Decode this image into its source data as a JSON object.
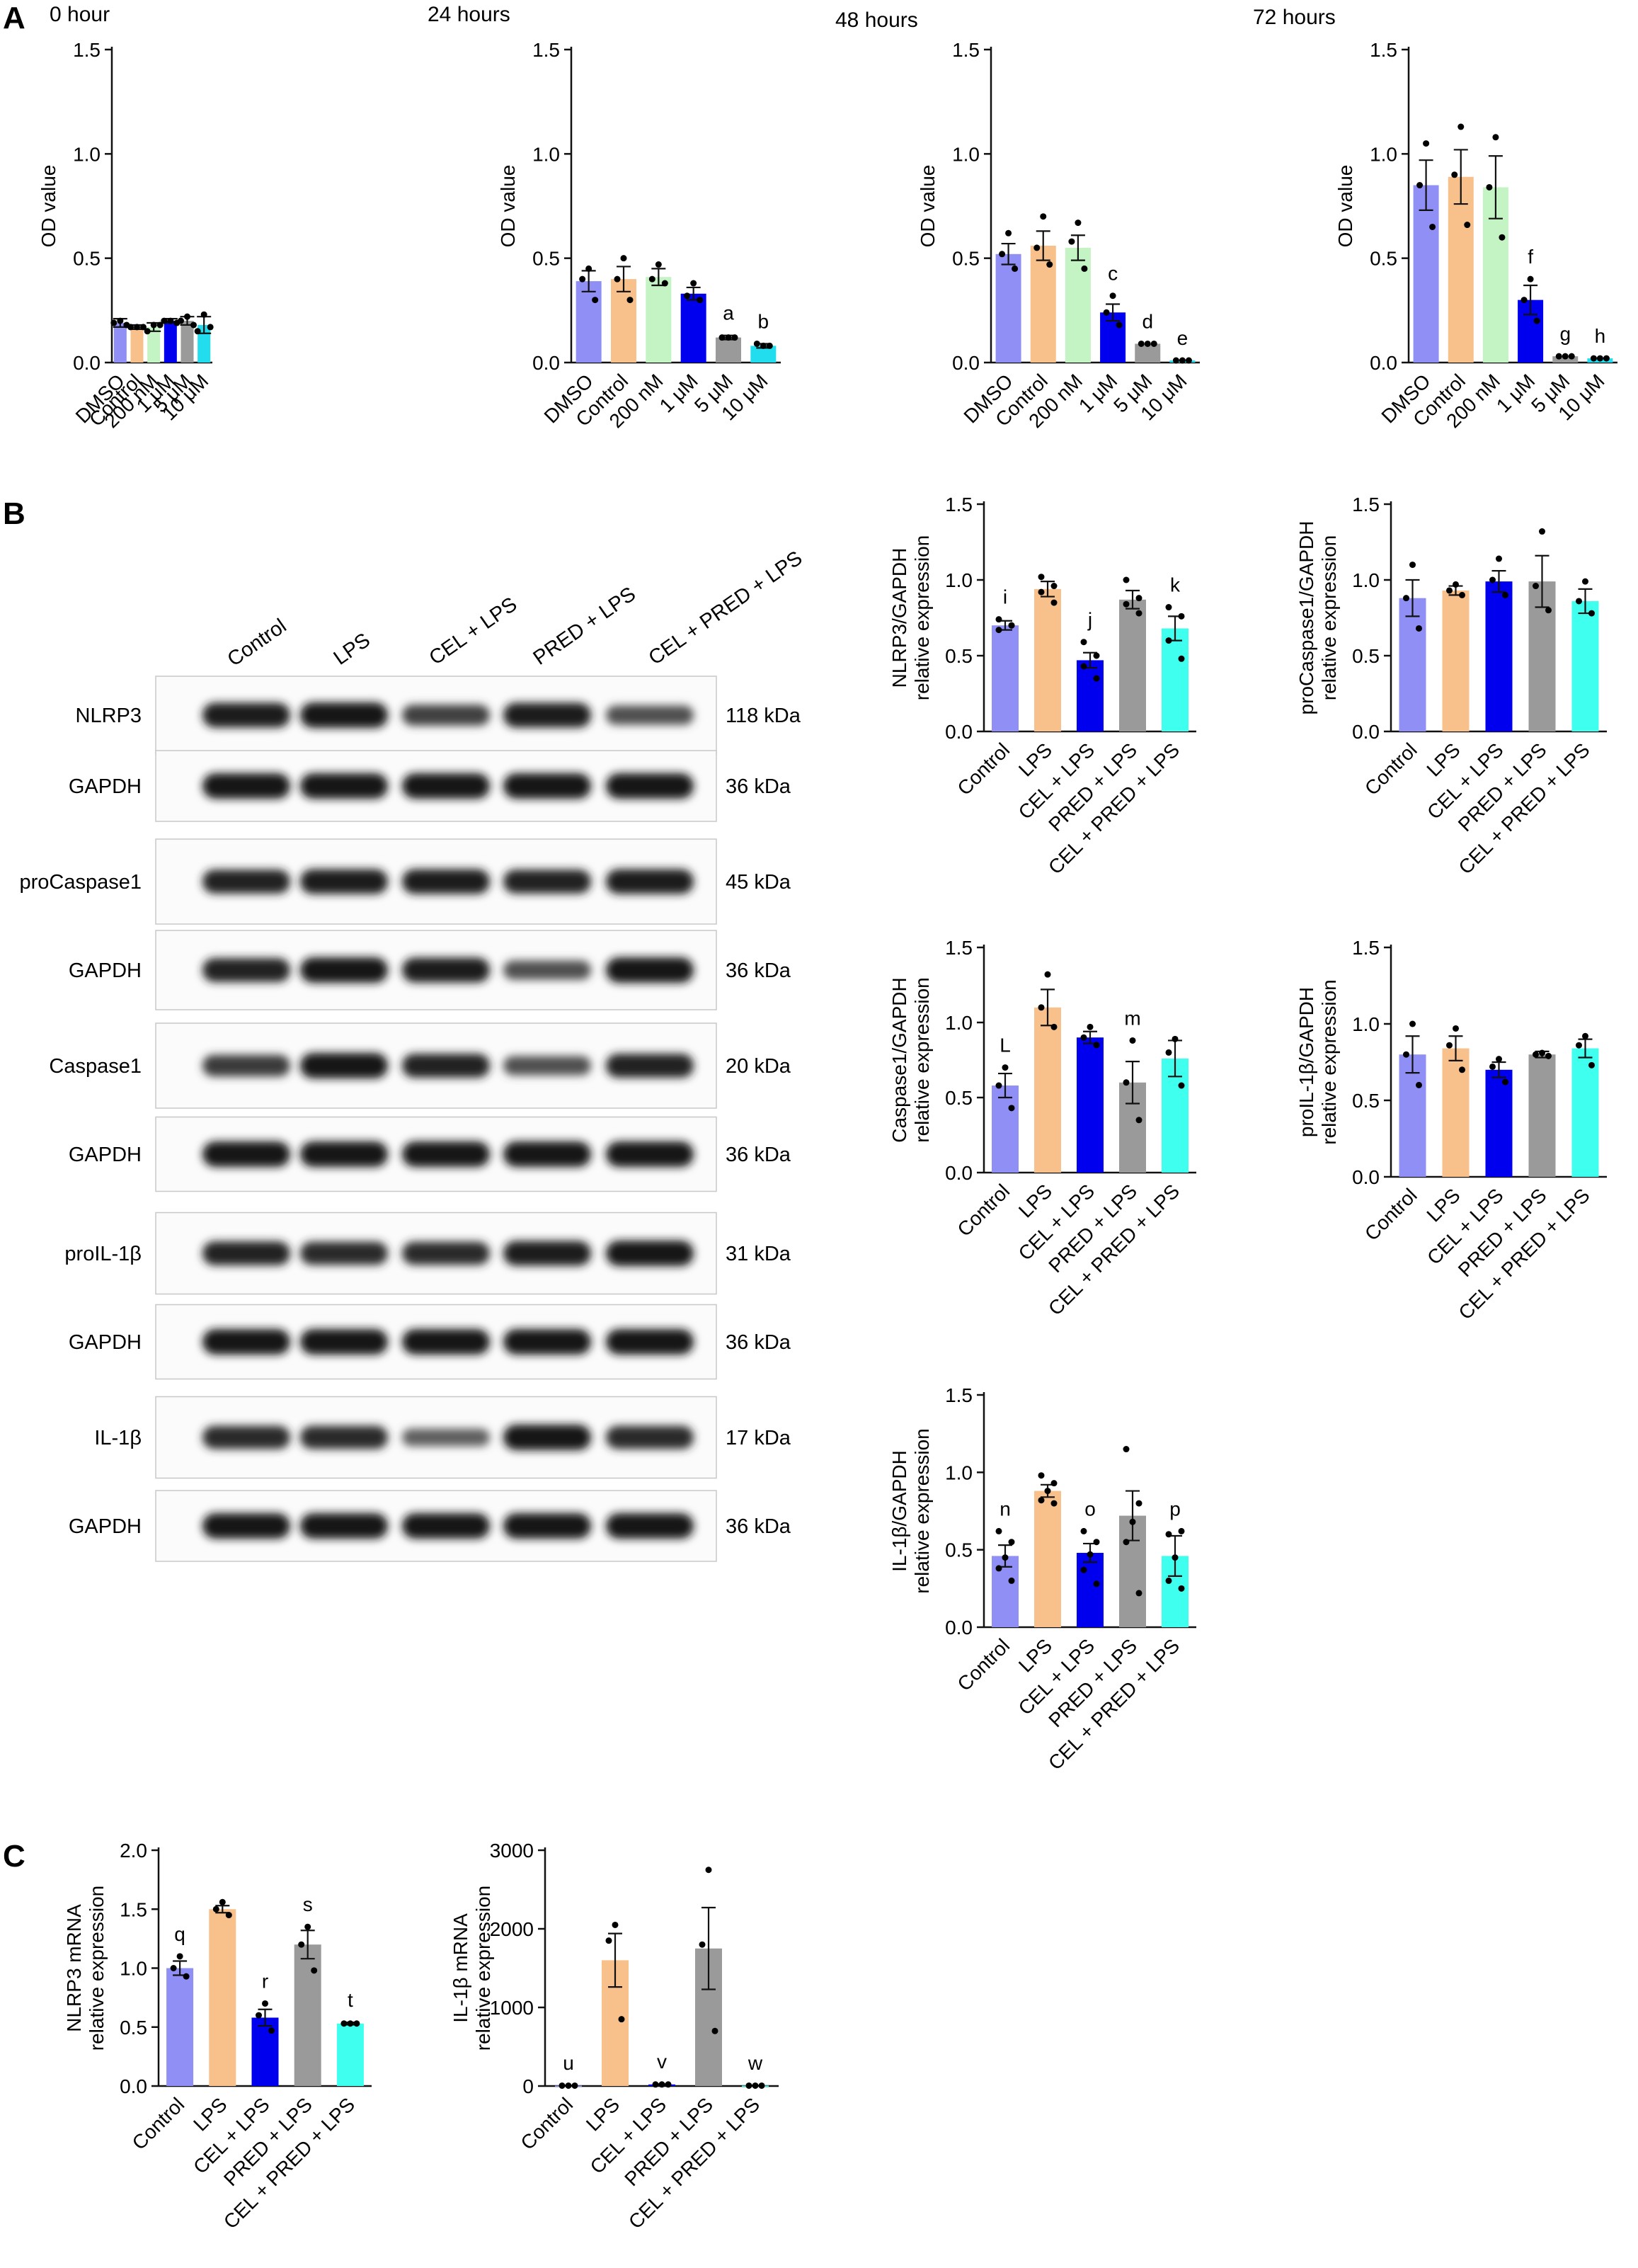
{
  "panel_labels": [
    "A",
    "B",
    "C"
  ],
  "colors": {
    "blue_light": "#8f8ff6",
    "orange": "#f8c08a",
    "mint": "#c4f3c4",
    "blue": "#0000ee",
    "grey": "#9a9a9a",
    "cyan": "#22ddee",
    "mint_bright": "#3fffee"
  },
  "chart_data": [
    {
      "id": "A-0h",
      "type": "bar",
      "title": "0 hour",
      "ylabel": "OD value",
      "xlabel": "",
      "ylim": [
        0,
        1.5
      ],
      "yticks": [
        "0.0",
        "0.5",
        "1.0",
        "1.5"
      ],
      "categories": [
        "DMSO",
        "Control",
        "200 nM",
        "1 μM",
        "5 μM",
        "10 μM"
      ],
      "values": [
        0.19,
        0.17,
        0.17,
        0.2,
        0.2,
        0.18
      ],
      "errors": [
        0.02,
        0.01,
        0.02,
        0.01,
        0.02,
        0.04
      ],
      "points": [
        [
          0.2,
          0.19,
          0.18
        ],
        [
          0.17,
          0.17,
          0.17
        ],
        [
          0.18,
          0.15,
          0.18
        ],
        [
          0.2,
          0.2,
          0.19
        ],
        [
          0.22,
          0.2,
          0.18
        ],
        [
          0.23,
          0.15,
          0.17
        ]
      ],
      "colors": [
        "#8f8ff6",
        "#f8c08a",
        "#c4f3c4",
        "#0000ee",
        "#9a9a9a",
        "#22ddee"
      ],
      "labels": [
        "",
        "",
        "",
        "",
        "",
        ""
      ]
    },
    {
      "id": "A-24h",
      "type": "bar",
      "title": "24 hours",
      "ylabel": "OD value",
      "xlabel": "",
      "ylim": [
        0,
        1.5
      ],
      "yticks": [
        "0.0",
        "0.5",
        "1.0",
        "1.5"
      ],
      "categories": [
        "DMSO",
        "Control",
        "200 nM",
        "1 μM",
        "5 μM",
        "10 μM"
      ],
      "values": [
        0.39,
        0.4,
        0.41,
        0.33,
        0.12,
        0.08
      ],
      "errors": [
        0.05,
        0.06,
        0.04,
        0.03,
        0.01,
        0.01
      ],
      "points": [
        [
          0.45,
          0.4,
          0.3
        ],
        [
          0.5,
          0.4,
          0.3
        ],
        [
          0.47,
          0.4,
          0.38
        ],
        [
          0.38,
          0.32,
          0.3
        ],
        [
          0.12,
          0.12,
          0.12
        ],
        [
          0.08,
          0.09,
          0.08
        ]
      ],
      "colors": [
        "#8f8ff6",
        "#f8c08a",
        "#c4f3c4",
        "#0000ee",
        "#9a9a9a",
        "#22ddee"
      ],
      "labels": [
        "",
        "",
        "",
        "",
        "a",
        "b"
      ]
    },
    {
      "id": "A-48h",
      "type": "bar",
      "title": "48 hours",
      "ylabel": "OD value",
      "xlabel": "",
      "ylim": [
        0,
        1.5
      ],
      "yticks": [
        "0.0",
        "0.5",
        "1.0",
        "1.5"
      ],
      "categories": [
        "DMSO",
        "Control",
        "200 nM",
        "1 μM",
        "5 μM",
        "10 μM"
      ],
      "values": [
        0.52,
        0.56,
        0.55,
        0.24,
        0.09,
        0.01
      ],
      "errors": [
        0.05,
        0.07,
        0.06,
        0.04,
        0.0,
        0.0
      ],
      "points": [
        [
          0.62,
          0.52,
          0.45
        ],
        [
          0.7,
          0.55,
          0.47
        ],
        [
          0.67,
          0.58,
          0.45
        ],
        [
          0.32,
          0.24,
          0.18
        ],
        [
          0.09,
          0.09,
          0.09
        ],
        [
          0.01,
          0.01,
          0.01
        ]
      ],
      "colors": [
        "#8f8ff6",
        "#f8c08a",
        "#c4f3c4",
        "#0000ee",
        "#9a9a9a",
        "#22ddee"
      ],
      "labels": [
        "",
        "",
        "",
        "c",
        "d",
        "e"
      ]
    },
    {
      "id": "A-72h",
      "type": "bar",
      "title": "72 hours",
      "ylabel": "OD value",
      "xlabel": "",
      "ylim": [
        0,
        1.5
      ],
      "yticks": [
        "0.0",
        "0.5",
        "1.0",
        "1.5"
      ],
      "categories": [
        "DMSO",
        "Control",
        "200 nM",
        "1 μM",
        "5 μM",
        "10 μM"
      ],
      "values": [
        0.85,
        0.89,
        0.84,
        0.3,
        0.03,
        0.02
      ],
      "errors": [
        0.12,
        0.13,
        0.15,
        0.07,
        0.0,
        0.0
      ],
      "points": [
        [
          1.05,
          0.85,
          0.65
        ],
        [
          1.13,
          0.9,
          0.66
        ],
        [
          1.08,
          0.84,
          0.6
        ],
        [
          0.4,
          0.3,
          0.2
        ],
        [
          0.03,
          0.03,
          0.03
        ],
        [
          0.02,
          0.02,
          0.02
        ]
      ],
      "colors": [
        "#8f8ff6",
        "#f8c08a",
        "#c4f3c4",
        "#0000ee",
        "#9a9a9a",
        "#22ddee"
      ],
      "labels": [
        "",
        "",
        "",
        "f",
        "g",
        "h"
      ]
    },
    {
      "id": "B-NLRP3",
      "type": "bar",
      "title": "",
      "ylabel": "NLRP3/GAPDH relative expression",
      "xlabel": "",
      "ylim": [
        0,
        1.5
      ],
      "yticks": [
        "0.0",
        "0.5",
        "1.0",
        "1.5"
      ],
      "categories": [
        "Control",
        "LPS",
        "CEL + LPS",
        "PRED + LPS",
        "CEL + PRED + LPS"
      ],
      "values": [
        0.7,
        0.94,
        0.47,
        0.87,
        0.68
      ],
      "errors": [
        0.03,
        0.05,
        0.05,
        0.06,
        0.08
      ],
      "points": [
        [
          0.74,
          0.7,
          0.67,
          0.7
        ],
        [
          1.02,
          0.96,
          0.92,
          0.85
        ],
        [
          0.59,
          0.5,
          0.43,
          0.35
        ],
        [
          1.0,
          0.88,
          0.84,
          0.78
        ],
        [
          0.82,
          0.76,
          0.6,
          0.48
        ]
      ],
      "colors": [
        "#8f8ff6",
        "#f8c08a",
        "#0000ee",
        "#9a9a9a",
        "#3fffee"
      ],
      "labels": [
        "i",
        "",
        "j",
        "",
        "k"
      ]
    },
    {
      "id": "B-proCaspase1",
      "type": "bar",
      "title": "",
      "ylabel": "proCaspase1/GAPDH relative expression",
      "xlabel": "",
      "ylim": [
        0,
        1.5
      ],
      "yticks": [
        "0.0",
        "0.5",
        "1.0",
        "1.5"
      ],
      "categories": [
        "Control",
        "LPS",
        "CEL + LPS",
        "PRED + LPS",
        "CEL + PRED + LPS"
      ],
      "values": [
        0.88,
        0.93,
        0.99,
        0.99,
        0.86
      ],
      "errors": [
        0.12,
        0.03,
        0.07,
        0.17,
        0.08
      ],
      "points": [
        [
          1.1,
          0.88,
          0.68
        ],
        [
          0.97,
          0.93,
          0.9
        ],
        [
          1.14,
          1.0,
          0.9
        ],
        [
          1.32,
          0.96,
          0.8
        ],
        [
          0.99,
          0.86,
          0.78
        ]
      ],
      "colors": [
        "#8f8ff6",
        "#f8c08a",
        "#0000ee",
        "#9a9a9a",
        "#3fffee"
      ],
      "labels": [
        "",
        "",
        "",
        "",
        ""
      ]
    },
    {
      "id": "B-Caspase1",
      "type": "bar",
      "title": "",
      "ylabel": "Caspase1/GAPDH relative expression",
      "xlabel": "",
      "ylim": [
        0,
        1.5
      ],
      "yticks": [
        "0.0",
        "0.5",
        "1.0",
        "1.5"
      ],
      "categories": [
        "Control",
        "LPS",
        "CEL + LPS",
        "PRED + LPS",
        "CEL + PRED + LPS"
      ],
      "values": [
        0.58,
        1.1,
        0.9,
        0.6,
        0.76
      ],
      "errors": [
        0.08,
        0.12,
        0.04,
        0.14,
        0.12
      ],
      "points": [
        [
          0.7,
          0.58,
          0.43
        ],
        [
          1.32,
          1.1,
          0.97
        ],
        [
          0.97,
          0.9,
          0.85
        ],
        [
          0.88,
          0.6,
          0.35
        ],
        [
          0.89,
          0.8,
          0.58
        ]
      ],
      "colors": [
        "#8f8ff6",
        "#f8c08a",
        "#0000ee",
        "#9a9a9a",
        "#3fffee"
      ],
      "labels": [
        "L",
        "",
        "",
        "m",
        ""
      ]
    },
    {
      "id": "B-proIL1b",
      "type": "bar",
      "title": "",
      "ylabel": "proIL-1β/GAPDH relative expression",
      "xlabel": "",
      "ylim": [
        0,
        1.5
      ],
      "yticks": [
        "0.0",
        "0.5",
        "1.0",
        "1.5"
      ],
      "categories": [
        "Control",
        "LPS",
        "CEL + LPS",
        "PRED + LPS",
        "CEL + PRED + LPS"
      ],
      "values": [
        0.8,
        0.84,
        0.7,
        0.8,
        0.84
      ],
      "errors": [
        0.12,
        0.08,
        0.05,
        0.02,
        0.06
      ],
      "points": [
        [
          1.0,
          0.8,
          0.6
        ],
        [
          0.97,
          0.86,
          0.7
        ],
        [
          0.77,
          0.72,
          0.62
        ],
        [
          0.81,
          0.8,
          0.79
        ],
        [
          0.92,
          0.86,
          0.73
        ]
      ],
      "colors": [
        "#8f8ff6",
        "#f8c08a",
        "#0000ee",
        "#9a9a9a",
        "#3fffee"
      ],
      "labels": [
        "",
        "",
        "",
        "",
        ""
      ]
    },
    {
      "id": "B-IL1b",
      "type": "bar",
      "title": "",
      "ylabel": "IL-1β/GAPDH relative expression",
      "xlabel": "",
      "ylim": [
        0,
        1.5
      ],
      "yticks": [
        "0.0",
        "0.5",
        "1.0",
        "1.5"
      ],
      "categories": [
        "Control",
        "LPS",
        "CEL + LPS",
        "PRED + LPS",
        "CEL + PRED + LPS"
      ],
      "values": [
        0.46,
        0.88,
        0.48,
        0.72,
        0.46
      ],
      "errors": [
        0.07,
        0.04,
        0.06,
        0.16,
        0.13
      ],
      "points": [
        [
          0.62,
          0.55,
          0.45,
          0.38,
          0.3
        ],
        [
          0.98,
          0.93,
          0.88,
          0.82,
          0.8
        ],
        [
          0.62,
          0.55,
          0.47,
          0.37,
          0.28
        ],
        [
          1.15,
          0.8,
          0.68,
          0.55,
          0.22
        ],
        [
          0.6,
          0.62,
          0.45,
          0.3,
          0.25
        ]
      ],
      "colors": [
        "#8f8ff6",
        "#f8c08a",
        "#0000ee",
        "#9a9a9a",
        "#3fffee"
      ],
      "labels": [
        "n",
        "",
        "o",
        "",
        "p"
      ]
    },
    {
      "id": "C-NLRP3mRNA",
      "type": "bar",
      "title": "",
      "ylabel": "NLRP3 mRNA relative expression",
      "xlabel": "",
      "ylim": [
        0,
        2.0
      ],
      "yticks": [
        "0.0",
        "0.5",
        "1.0",
        "1.5",
        "2.0"
      ],
      "categories": [
        "Control",
        "LPS",
        "CEL + LPS",
        "PRED + LPS",
        "CEL + PRED + LPS"
      ],
      "values": [
        1.0,
        1.5,
        0.58,
        1.2,
        0.53
      ],
      "errors": [
        0.06,
        0.03,
        0.07,
        0.12,
        0.01
      ],
      "points": [
        [
          1.1,
          1.0,
          0.93
        ],
        [
          1.56,
          1.5,
          1.45
        ],
        [
          0.7,
          0.6,
          0.47
        ],
        [
          1.35,
          1.2,
          0.98
        ],
        [
          0.53,
          0.53,
          0.53
        ]
      ],
      "colors": [
        "#8f8ff6",
        "#f8c08a",
        "#0000ee",
        "#9a9a9a",
        "#3fffee"
      ],
      "labels": [
        "q",
        "",
        "r",
        "s",
        "t"
      ]
    },
    {
      "id": "C-IL1bmRNA",
      "type": "bar",
      "title": "",
      "ylabel": "IL-1β mRNA relative expression",
      "xlabel": "",
      "ylim": [
        0,
        3000
      ],
      "yticks": [
        "0",
        "1000",
        "2000",
        "3000"
      ],
      "categories": [
        "Control",
        "LPS",
        "CEL + LPS",
        "PRED + LPS",
        "CEL + PRED + LPS"
      ],
      "values": [
        5,
        1600,
        20,
        1750,
        5
      ],
      "errors": [
        2,
        340,
        5,
        520,
        2
      ],
      "points": [
        [
          5,
          5,
          5
        ],
        [
          2050,
          1850,
          850
        ],
        [
          20,
          20,
          20
        ],
        [
          2750,
          1800,
          700
        ],
        [
          5,
          5,
          5
        ]
      ],
      "colors": [
        "#8f8ff6",
        "#f8c08a",
        "#0000ee",
        "#9a9a9a",
        "#3fffee"
      ],
      "labels": [
        "u",
        "",
        "v",
        "",
        "w"
      ]
    }
  ],
  "blot": {
    "lanes": [
      "Control",
      "LPS",
      "CEL + LPS",
      "PRED + LPS",
      "CEL + PRED + LPS"
    ],
    "rows": [
      {
        "label": "NLRP3",
        "kda": "118 kDa",
        "intensity": [
          0.95,
          1.0,
          0.7,
          0.95,
          0.6
        ]
      },
      {
        "label": "GAPDH",
        "kda": "36 kDa",
        "intensity": [
          1,
          1,
          1,
          1,
          1
        ]
      },
      {
        "label": "proCaspase1",
        "kda": "45 kDa",
        "intensity": [
          0.9,
          0.95,
          0.95,
          0.9,
          0.95
        ]
      },
      {
        "label": "GAPDH",
        "kda": "36 kDa",
        "intensity": [
          0.9,
          1,
          0.95,
          0.6,
          1
        ]
      },
      {
        "label": "Caspase1",
        "kda": "20 kDa",
        "intensity": [
          0.75,
          1.0,
          0.9,
          0.6,
          0.9
        ]
      },
      {
        "label": "GAPDH",
        "kda": "36 kDa",
        "intensity": [
          1,
          1,
          1,
          1,
          1
        ]
      },
      {
        "label": "proIL-1β",
        "kda": "31 kDa",
        "intensity": [
          0.9,
          0.85,
          0.85,
          0.95,
          1.0
        ]
      },
      {
        "label": "GAPDH",
        "kda": "36 kDa",
        "intensity": [
          1,
          1,
          1,
          1,
          1
        ]
      },
      {
        "label": "IL-1β",
        "kda": "17 kDa",
        "intensity": [
          0.85,
          0.85,
          0.5,
          1.0,
          0.85
        ]
      },
      {
        "label": "GAPDH",
        "kda": "36 kDa",
        "intensity": [
          1,
          1,
          1,
          1,
          1
        ]
      }
    ]
  }
}
